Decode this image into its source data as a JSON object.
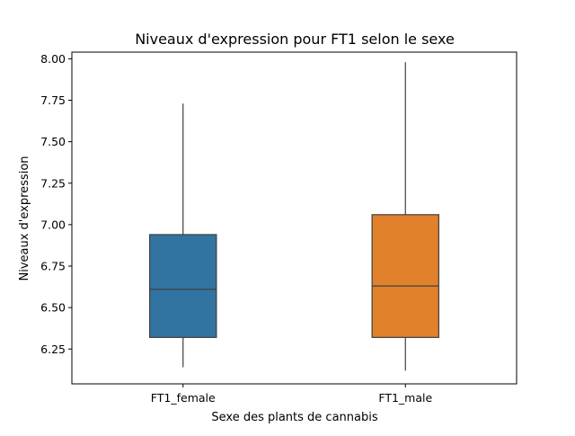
{
  "chart_data": {
    "type": "box",
    "title": "Niveaux d'expression pour FT1 selon le sexe",
    "xlabel": "Sexe des plants de cannabis",
    "ylabel": "Niveaux d'expression",
    "ylim": [
      6.04,
      8.04
    ],
    "yticks": [
      "6.25",
      "6.50",
      "6.75",
      "7.00",
      "7.25",
      "7.50",
      "7.75",
      "8.00"
    ],
    "categories": [
      "FT1_female",
      "FT1_male"
    ],
    "boxes": [
      {
        "category": "FT1_female",
        "whisker_low": 6.14,
        "q1": 6.32,
        "median": 6.61,
        "q3": 6.94,
        "whisker_high": 7.73,
        "color": "#3274a1"
      },
      {
        "category": "FT1_male",
        "whisker_low": 6.12,
        "q1": 6.32,
        "median": 6.63,
        "q3": 7.06,
        "whisker_high": 7.98,
        "color": "#e1812c"
      }
    ],
    "grid": false,
    "legend": "none"
  }
}
